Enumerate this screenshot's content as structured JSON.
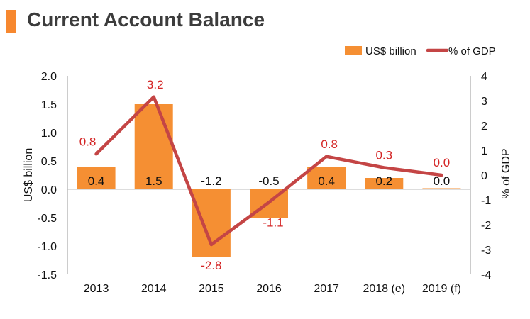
{
  "title": "Current Account Balance",
  "chart_data": {
    "type": "bar+line",
    "categories": [
      "2013",
      "2014",
      "2015",
      "2016",
      "2017",
      "2018 (e)",
      "2019 (f)"
    ],
    "series": [
      {
        "name": "US$ billion",
        "kind": "bar",
        "axis": "left",
        "values": [
          0.4,
          1.5,
          -1.2,
          -0.5,
          0.4,
          0.2,
          0.0
        ],
        "labels": [
          "0.4",
          "1.5",
          "-1.2",
          "-0.5",
          "0.4",
          "0.2",
          "0.0"
        ],
        "color": "#f58f33"
      },
      {
        "name": "% of GDP",
        "kind": "line",
        "axis": "right",
        "values": [
          0.85,
          3.15,
          -2.8,
          -1.1,
          0.75,
          0.3,
          0.0
        ],
        "labels": [
          "0.8",
          "3.2",
          "-2.8",
          "-1.1",
          "0.8",
          "0.3",
          "0.0"
        ],
        "color": "#c44545",
        "label_color": "#d42525"
      }
    ],
    "ylabel_left": "US$ billion",
    "ylabel_right": "% of GDP",
    "ylim_left": [
      -1.5,
      2.0
    ],
    "ylim_right": [
      -4,
      4
    ],
    "yticks_left": [
      "2.0",
      "1.5",
      "1.0",
      "0.5",
      "0.0",
      "-0.5",
      "-1.0",
      "-1.5"
    ],
    "yticks_right": [
      "4",
      "3",
      "2",
      "1",
      "0",
      "-1",
      "-2",
      "-3",
      "-4"
    ],
    "legend": [
      "US$ billion",
      "% of GDP"
    ],
    "legend_position": "top-right",
    "grid": false
  }
}
